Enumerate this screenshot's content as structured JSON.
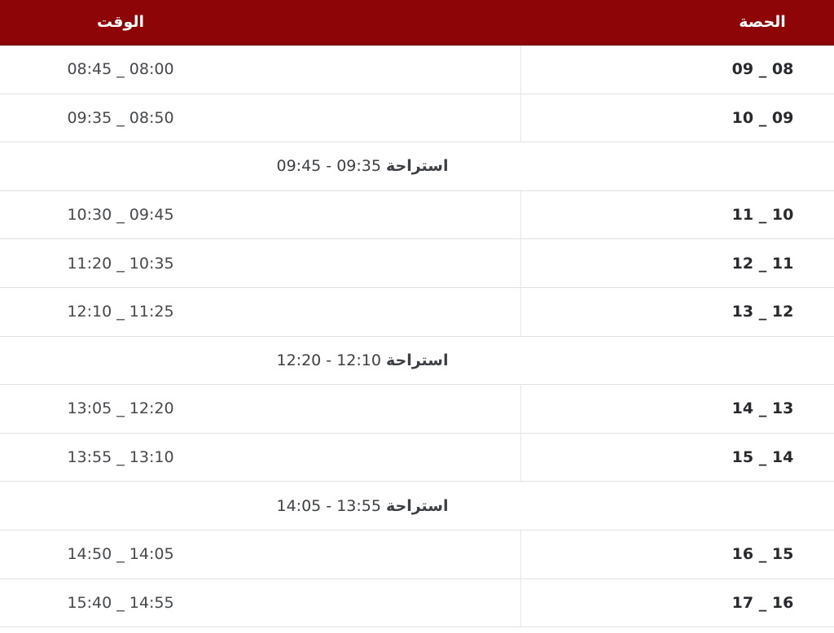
{
  "colors": {
    "header_bg": "#8d0507",
    "header_border": "#7d1214",
    "header_text": "#ffffff",
    "row_bg": "#ffffff",
    "row_border": "#dee2e6",
    "column_divider": "#e3e5e8",
    "period_text": "#27292d",
    "time_text": "#45484d",
    "break_text": "#3c3f44"
  },
  "table": {
    "columns": [
      {
        "key": "period",
        "label": "الحصة"
      },
      {
        "key": "time",
        "label": "الوقت"
      }
    ],
    "rows": [
      {
        "type": "class",
        "period": "08 _ 09",
        "time": "08:00 _ 08:45"
      },
      {
        "type": "class",
        "period": "09 _ 10",
        "time": "08:50 _ 09:35"
      },
      {
        "type": "break",
        "label": "استراحة",
        "time_range": "09:35 - 09:45"
      },
      {
        "type": "class",
        "period": "10 _ 11",
        "time": "09:45 _ 10:30"
      },
      {
        "type": "class",
        "period": "11 _ 12",
        "time": "10:35 _ 11:20"
      },
      {
        "type": "class",
        "period": "12 _ 13",
        "time": "11:25 _ 12:10"
      },
      {
        "type": "break",
        "label": "استراحة",
        "time_range": "12:10 - 12:20"
      },
      {
        "type": "class",
        "period": "13 _ 14",
        "time": "12:20 _ 13:05"
      },
      {
        "type": "class",
        "period": "14 _ 15",
        "time": "13:10 _ 13:55"
      },
      {
        "type": "break",
        "label": "استراحة",
        "time_range": "13:55 - 14:05"
      },
      {
        "type": "class",
        "period": "15 _ 16",
        "time": "14:05 _ 14:50"
      },
      {
        "type": "class",
        "period": "16 _ 17",
        "time": "14:55 _ 15:40"
      }
    ]
  }
}
